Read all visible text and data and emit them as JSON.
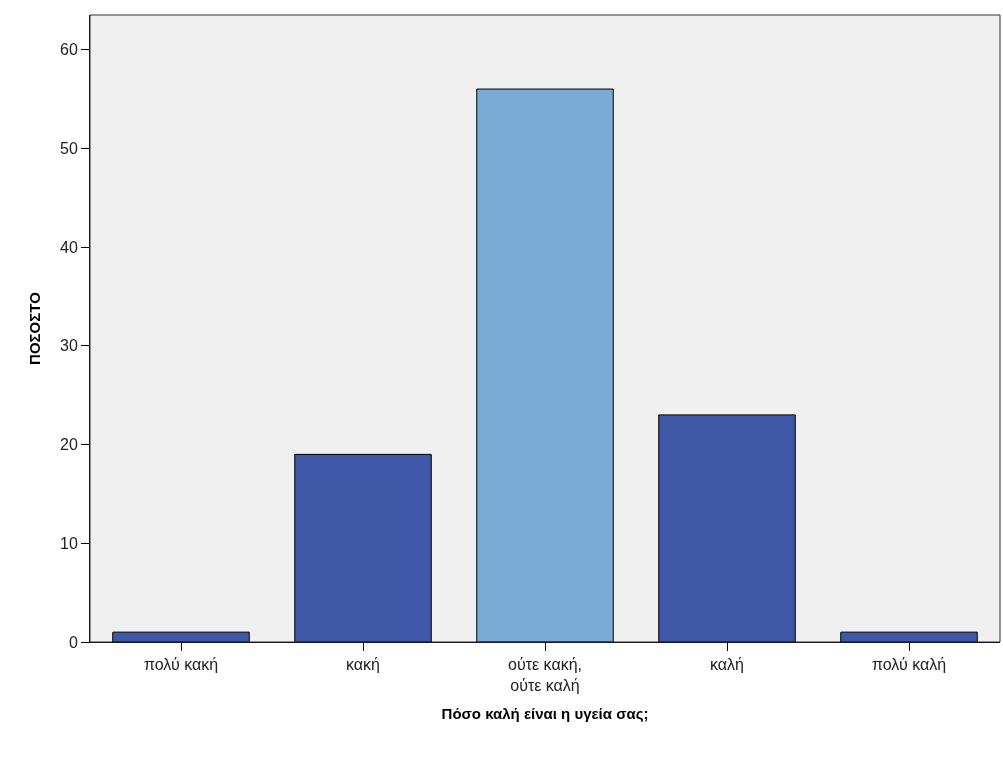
{
  "chart_data": {
    "type": "bar",
    "xlabel": "Πόσο καλή είναι η υγεία σας;",
    "ylabel": "ΠΟΣΟΣΤΟ",
    "categories": [
      "πολύ κακή",
      "κακή",
      "ούτε κακή,\nούτε καλή",
      "καλή",
      "πολύ καλή"
    ],
    "values": [
      1,
      19,
      56,
      23,
      1
    ],
    "colors": [
      "#3f58a8",
      "#3f58a8",
      "#7aaad6",
      "#3f58a8",
      "#3f58a8"
    ],
    "ylim": [
      0,
      63.5
    ],
    "yticks": [
      0,
      10,
      20,
      30,
      40,
      50,
      60
    ],
    "grid": false
  }
}
